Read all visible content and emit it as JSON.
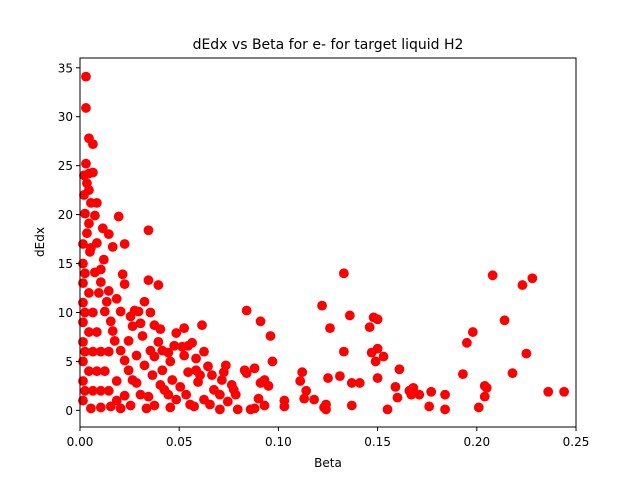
{
  "chart_data": {
    "type": "scatter",
    "title": "dEdx vs Beta for e- for target liquid H2",
    "xlabel": "Beta",
    "ylabel": "dEdx",
    "xlim": [
      0,
      0.25
    ],
    "ylim": [
      -1.7,
      36
    ],
    "xticks": [
      0.0,
      0.05,
      0.1,
      0.15,
      0.2,
      0.25
    ],
    "xtick_labels": [
      "0.00",
      "0.05",
      "0.10",
      "0.15",
      "0.20",
      "0.25"
    ],
    "yticks": [
      0,
      5,
      10,
      15,
      20,
      25,
      30,
      35
    ],
    "ytick_labels": [
      "0",
      "5",
      "10",
      "15",
      "20",
      "25",
      "30",
      "35"
    ],
    "grid": false,
    "marker_color": "#ff0000",
    "series": [
      {
        "points": [
          [
            0.003,
            34.1
          ],
          [
            0.003,
            30.9
          ],
          [
            0.0045,
            27.8
          ],
          [
            0.0065,
            27.2
          ],
          [
            0.003,
            25.2
          ],
          [
            0.002,
            24.0
          ],
          [
            0.0045,
            24.2
          ],
          [
            0.0065,
            24.3
          ],
          [
            0.0045,
            22.5
          ],
          [
            0.002,
            22.0
          ],
          [
            0.0085,
            21.2
          ],
          [
            0.0075,
            19.9
          ],
          [
            0.0195,
            19.8
          ],
          [
            0.0345,
            18.4
          ],
          [
            0.0115,
            18.6
          ],
          [
            0.0145,
            18.0
          ],
          [
            0.0165,
            16.7
          ],
          [
            0.0225,
            17.0
          ],
          [
            0.005,
            16.2
          ],
          [
            0.012,
            15.4
          ],
          [
            0.0105,
            14.4
          ],
          [
            0.0215,
            13.9
          ],
          [
            0.0345,
            13.3
          ],
          [
            0.0395,
            12.8
          ],
          [
            0.0225,
            12.9
          ],
          [
            0.0145,
            12.2
          ],
          [
            0.0185,
            11.4
          ],
          [
            0.0275,
            10.2
          ],
          [
            0.0325,
            11.1
          ],
          [
            0.0355,
            10.0
          ],
          [
            0.0305,
            8.9
          ],
          [
            0.0375,
            8.7
          ],
          [
            0.0405,
            8.3
          ],
          [
            0.0525,
            8.4
          ],
          [
            0.0615,
            8.7
          ],
          [
            0.0395,
            7.0
          ],
          [
            0.0485,
            7.9
          ],
          [
            0.0565,
            6.9
          ],
          [
            0.0625,
            6.0
          ],
          [
            0.0515,
            6.5
          ],
          [
            0.0445,
            5.9
          ],
          [
            0.0375,
            5.5
          ],
          [
            0.0455,
            5.0
          ],
          [
            0.0585,
            5.3
          ],
          [
            0.0645,
            4.5
          ],
          [
            0.0735,
            4.6
          ],
          [
            0.0665,
            3.6
          ],
          [
            0.0715,
            3.1
          ],
          [
            0.0765,
            2.6
          ],
          [
            0.0785,
            1.6
          ],
          [
            0.0675,
            2.1
          ],
          [
            0.0625,
            1.1
          ],
          [
            0.0555,
            0.6
          ],
          [
            0.0485,
            1.1
          ],
          [
            0.0425,
            2.1
          ],
          [
            0.0345,
            1.4
          ],
          [
            0.0285,
            2.8
          ],
          [
            0.0245,
            4.1
          ],
          [
            0.0205,
            6.1
          ],
          [
            0.0165,
            8.1
          ],
          [
            0.0125,
            10.1
          ],
          [
            0.0095,
            12.0
          ],
          [
            0.0075,
            14.1
          ],
          [
            0.0055,
            16.6
          ],
          [
            0.0035,
            18.1
          ],
          [
            0.0025,
            20.1
          ],
          [
            0.0045,
            19.1
          ],
          [
            0.0055,
            21.2
          ],
          [
            0.0035,
            23.2
          ],
          [
            0.0085,
            17.1
          ],
          [
            0.0105,
            13.1
          ],
          [
            0.0135,
            11.1
          ],
          [
            0.0155,
            9.1
          ],
          [
            0.0175,
            7.1
          ],
          [
            0.0225,
            5.1
          ],
          [
            0.0265,
            3.1
          ],
          [
            0.0305,
            1.6
          ],
          [
            0.0325,
            4.6
          ],
          [
            0.0365,
            3.6
          ],
          [
            0.0405,
            2.6
          ],
          [
            0.0445,
            1.6
          ],
          [
            0.0505,
            2.4
          ],
          [
            0.0545,
            3.9
          ],
          [
            0.0595,
            2.9
          ],
          [
            0.0655,
            0.6
          ],
          [
            0.0705,
            0.1
          ],
          [
            0.0745,
            0.9
          ],
          [
            0.0795,
            0.1
          ],
          [
            0.0105,
            0.3
          ],
          [
            0.0155,
            0.4
          ],
          [
            0.0205,
            0.2
          ],
          [
            0.0255,
            0.5
          ],
          [
            0.0055,
            0.2
          ],
          [
            0.0015,
            1.0
          ],
          [
            0.0015,
            3.0
          ],
          [
            0.0015,
            5.0
          ],
          [
            0.0015,
            7.0
          ],
          [
            0.0015,
            9.0
          ],
          [
            0.0015,
            11.0
          ],
          [
            0.0015,
            13.0
          ],
          [
            0.0015,
            15.0
          ],
          [
            0.0015,
            17.0
          ],
          [
            0.0025,
            2.0
          ],
          [
            0.0025,
            6.0
          ],
          [
            0.0025,
            10.0
          ],
          [
            0.0025,
            14.0
          ],
          [
            0.0045,
            4.0
          ],
          [
            0.0045,
            8.0
          ],
          [
            0.0045,
            12.0
          ],
          [
            0.0065,
            2.0
          ],
          [
            0.0065,
            6.0
          ],
          [
            0.0065,
            10.0
          ],
          [
            0.0085,
            4.0
          ],
          [
            0.0085,
            8.0
          ],
          [
            0.0105,
            2.0
          ],
          [
            0.0105,
            6.0
          ],
          [
            0.0125,
            4.0
          ],
          [
            0.0145,
            2.0
          ],
          [
            0.0145,
            6.0
          ],
          [
            0.0185,
            3.0
          ],
          [
            0.0185,
            1.0
          ],
          [
            0.0225,
            1.5
          ],
          [
            0.0245,
            7.1
          ],
          [
            0.0285,
            5.6
          ],
          [
            0.0315,
            7.6
          ],
          [
            0.0265,
            8.6
          ],
          [
            0.0205,
            10.1
          ],
          [
            0.0255,
            9.6
          ],
          [
            0.0295,
            10.1
          ],
          [
            0.0355,
            6.1
          ],
          [
            0.0415,
            4.1
          ],
          [
            0.0465,
            3.1
          ],
          [
            0.0535,
            1.6
          ],
          [
            0.0575,
            0.4
          ],
          [
            0.0605,
            3.6
          ],
          [
            0.0705,
            1.6
          ],
          [
            0.0725,
            3.9
          ],
          [
            0.0775,
            2.1
          ],
          [
            0.0375,
            0.5
          ],
          [
            0.0455,
            0.3
          ],
          [
            0.0335,
            0.2
          ],
          [
            0.0415,
            6.1
          ],
          [
            0.0475,
            6.6
          ],
          [
            0.0525,
            5.6
          ],
          [
            0.0585,
            4.1
          ],
          [
            0.0545,
            6.6
          ],
          [
            0.084,
            10.2
          ],
          [
            0.091,
            9.1
          ],
          [
            0.096,
            7.6
          ],
          [
            0.097,
            5.0
          ],
          [
            0.083,
            4.1
          ],
          [
            0.084,
            3.8
          ],
          [
            0.088,
            4.3
          ],
          [
            0.093,
            3.1
          ],
          [
            0.091,
            2.8
          ],
          [
            0.095,
            2.5
          ],
          [
            0.09,
            1.2
          ],
          [
            0.088,
            0.2
          ],
          [
            0.086,
            0.1
          ],
          [
            0.093,
            0.5
          ],
          [
            0.103,
            0.4
          ],
          [
            0.103,
            1.0
          ],
          [
            0.111,
            3.0
          ],
          [
            0.112,
            3.9
          ],
          [
            0.114,
            2.0
          ],
          [
            0.113,
            1.2
          ],
          [
            0.118,
            1.1
          ],
          [
            0.122,
            10.7
          ],
          [
            0.126,
            8.4
          ],
          [
            0.125,
            3.3
          ],
          [
            0.123,
            0.3
          ],
          [
            0.124,
            0.6
          ],
          [
            0.124,
            0.1
          ],
          [
            0.131,
            3.5
          ],
          [
            0.133,
            6.0
          ],
          [
            0.133,
            14.0
          ],
          [
            0.136,
            9.7
          ],
          [
            0.137,
            2.8
          ],
          [
            0.137,
            0.5
          ],
          [
            0.141,
            2.8
          ],
          [
            0.146,
            8.5
          ],
          [
            0.148,
            9.5
          ],
          [
            0.15,
            9.3
          ],
          [
            0.147,
            5.9
          ],
          [
            0.149,
            5.0
          ],
          [
            0.15,
            3.3
          ],
          [
            0.15,
            6.3
          ],
          [
            0.153,
            5.5
          ],
          [
            0.155,
            0.1
          ],
          [
            0.159,
            2.4
          ],
          [
            0.16,
            1.3
          ],
          [
            0.161,
            4.2
          ],
          [
            0.166,
            2.0
          ],
          [
            0.167,
            1.6
          ],
          [
            0.168,
            2.3
          ],
          [
            0.171,
            1.6
          ],
          [
            0.176,
            0.4
          ],
          [
            0.177,
            1.9
          ],
          [
            0.184,
            1.6
          ],
          [
            0.184,
            0.1
          ],
          [
            0.193,
            3.7
          ],
          [
            0.195,
            6.9
          ],
          [
            0.198,
            8.0
          ],
          [
            0.201,
            0.3
          ],
          [
            0.204,
            2.5
          ],
          [
            0.205,
            2.3
          ],
          [
            0.204,
            1.4
          ],
          [
            0.208,
            13.8
          ],
          [
            0.214,
            9.2
          ],
          [
            0.218,
            3.8
          ],
          [
            0.223,
            12.8
          ],
          [
            0.225,
            5.8
          ],
          [
            0.228,
            13.5
          ],
          [
            0.236,
            1.9
          ],
          [
            0.244,
            1.9
          ]
        ]
      }
    ]
  }
}
